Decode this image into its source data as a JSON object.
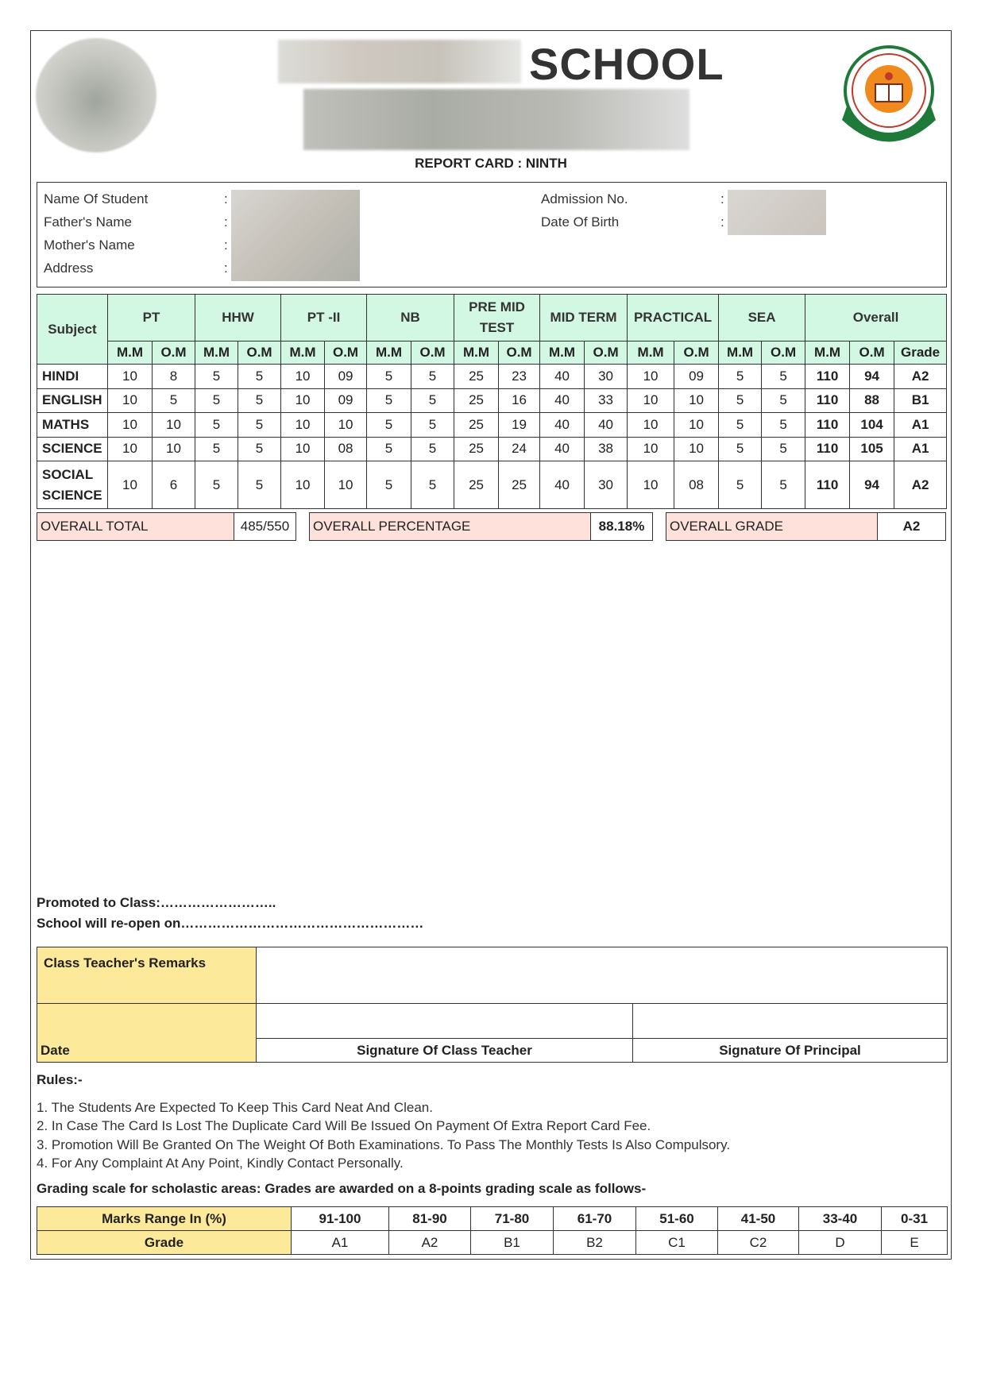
{
  "header": {
    "school_word": "SCHOOL",
    "report_title": "REPORT CARD : NINTH"
  },
  "student_info": {
    "left_labels": [
      "Name Of Student",
      "Father's Name",
      "Mother's Name",
      "Address"
    ],
    "right_labels": [
      "Admission No.",
      "Date Of Birth"
    ],
    "separator": ":"
  },
  "marks": {
    "subject_header": "Subject",
    "groups": [
      "PT",
      "HHW",
      "PT -II",
      "NB",
      "PRE MID TEST",
      "MID TERM",
      "PRACTICAL",
      "SEA",
      "Overall"
    ],
    "sub_headers": [
      "M.M",
      "O.M",
      "Grade"
    ],
    "rows": [
      {
        "subject": "HINDI",
        "values": [
          "10",
          "8",
          "5",
          "5",
          "10",
          "09",
          "5",
          "5",
          "25",
          "23",
          "40",
          "30",
          "10",
          "09",
          "5",
          "5"
        ],
        "overall": [
          "110",
          "94",
          "A2"
        ]
      },
      {
        "subject": "ENGLISH",
        "values": [
          "10",
          "5",
          "5",
          "5",
          "10",
          "09",
          "5",
          "5",
          "25",
          "16",
          "40",
          "33",
          "10",
          "10",
          "5",
          "5"
        ],
        "overall": [
          "110",
          "88",
          "B1"
        ]
      },
      {
        "subject": "MATHS",
        "values": [
          "10",
          "10",
          "5",
          "5",
          "10",
          "10",
          "5",
          "5",
          "25",
          "19",
          "40",
          "40",
          "10",
          "10",
          "5",
          "5"
        ],
        "overall": [
          "110",
          "104",
          "A1"
        ]
      },
      {
        "subject": "SCIENCE",
        "values": [
          "10",
          "10",
          "5",
          "5",
          "10",
          "08",
          "5",
          "5",
          "25",
          "24",
          "40",
          "38",
          "10",
          "10",
          "5",
          "5"
        ],
        "overall": [
          "110",
          "105",
          "A1"
        ]
      },
      {
        "subject": "SOCIAL SCIENCE",
        "values": [
          "10",
          "6",
          "5",
          "5",
          "10",
          "10",
          "5",
          "5",
          "25",
          "25",
          "40",
          "30",
          "10",
          "08",
          "5",
          "5"
        ],
        "overall": [
          "110",
          "94",
          "A2"
        ]
      }
    ]
  },
  "summary": {
    "total_label": "OVERALL TOTAL",
    "total_value": "485/550",
    "percentage_label": "OVERALL PERCENTAGE",
    "percentage_value": "88.18%",
    "grade_label": "OVERALL GRADE",
    "grade_value": "A2"
  },
  "footer": {
    "promoted": "Promoted to Class:……………………..",
    "reopen": "School will re-open on………………………………………………",
    "remarks_label": "Class Teacher's Remarks",
    "date_label": "Date",
    "sig_teacher": "Signature Of Class Teacher",
    "sig_principal": "Signature Of Principal"
  },
  "rules": {
    "title": "Rules:-",
    "items": [
      "1. The Students Are Expected To Keep This Card Neat And Clean.",
      "2. In Case The Card Is Lost The Duplicate Card Will Be Issued On Payment Of Extra Report Card Fee.",
      "3. Promotion Will Be Granted On The Weight Of Both Examinations. To Pass The Monthly Tests Is Also Compulsory.",
      "4. For Any Complaint At Any Point, Kindly Contact Personally."
    ],
    "grading_note": "Grading scale for scholastic areas: Grades are awarded on a 8-points grading scale as follows-"
  },
  "grading_scale": {
    "range_label": "Marks Range In (%)",
    "grade_label": "Grade",
    "ranges": [
      "91-100",
      "81-90",
      "71-80",
      "61-70",
      "51-60",
      "41-50",
      "33-40",
      "0-31"
    ],
    "grades": [
      "A1",
      "A2",
      "B1",
      "B2",
      "C1",
      "C2",
      "D",
      "E"
    ]
  },
  "colors": {
    "header_green": "#d2f8e4",
    "summary_pink": "#fde1da",
    "label_yellow": "#fde99a"
  }
}
